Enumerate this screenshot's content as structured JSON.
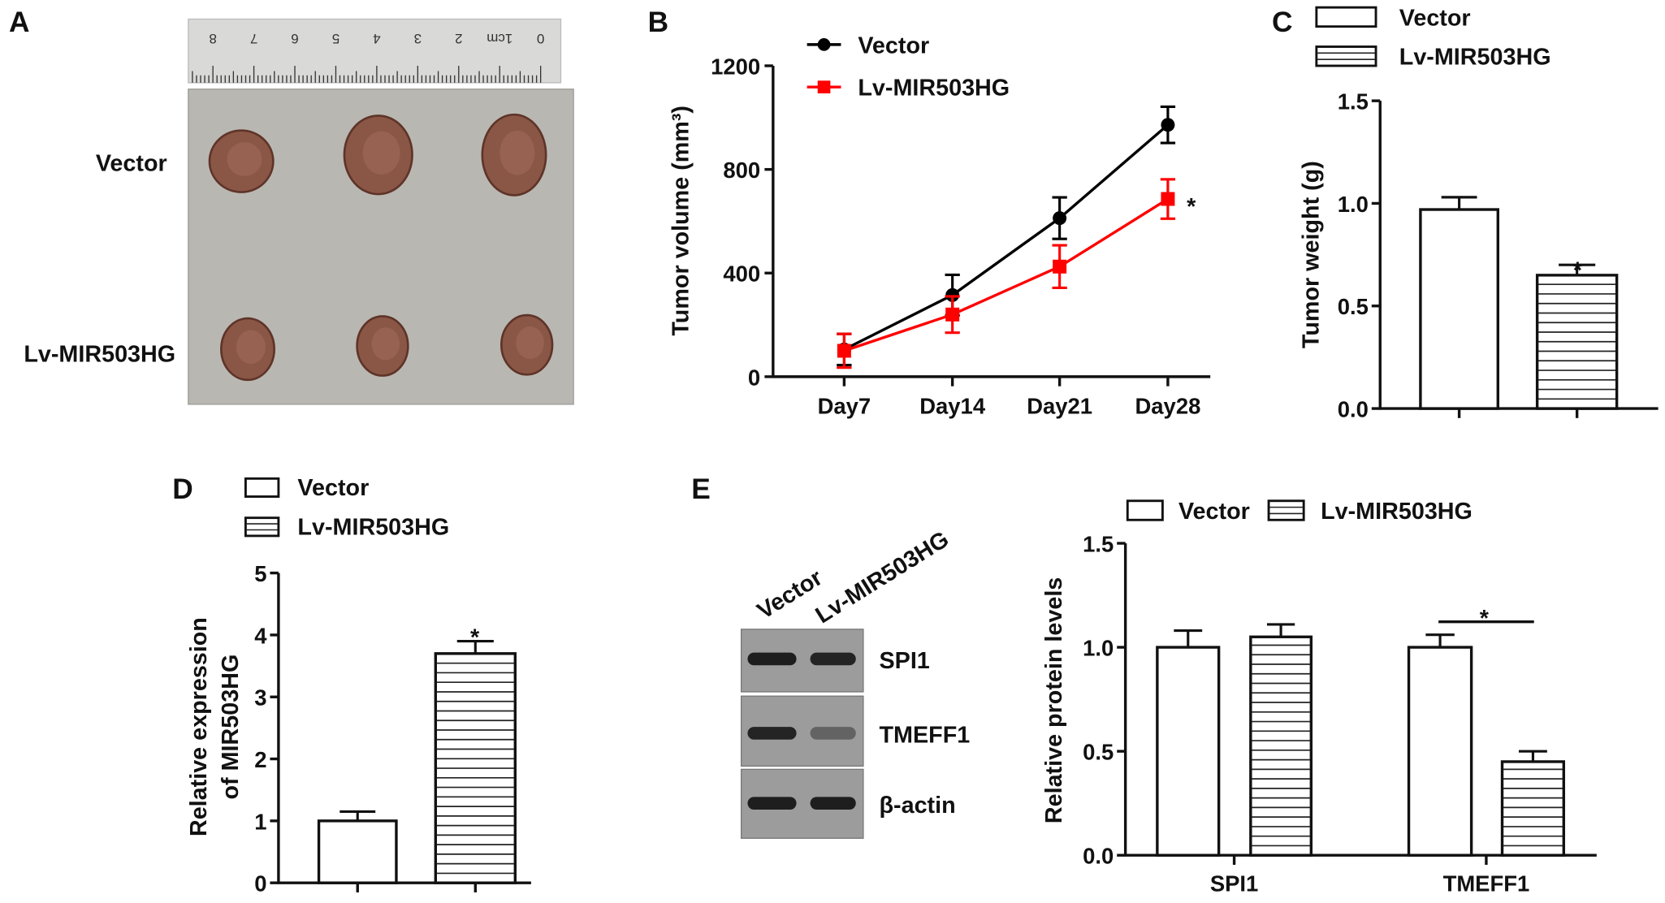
{
  "figure": {
    "panel_labels": {
      "a": "A",
      "b": "B",
      "c": "C",
      "d": "D",
      "e": "E"
    },
    "panel_a": {
      "row_labels": [
        "Vector",
        "Lv-MIR503HG"
      ],
      "ruler_labels": [
        "0",
        "1cm",
        "2",
        "3",
        "4",
        "5",
        "6",
        "7",
        "8"
      ],
      "colors": {
        "tumor": "#8a5646",
        "tumor_edge": "#5e3429",
        "background": "#b9b7b1",
        "ruler": "#d9d9d7"
      }
    },
    "panel_e_blot": {
      "lane_labels": [
        "Vector",
        "Lv-MIR503HG"
      ],
      "band_labels": [
        "SPI1",
        "TMEFF1",
        "β-actin"
      ],
      "colors": {
        "membrane": "#9c9c9c",
        "band": "#1e1e1e"
      }
    }
  },
  "chart_data": [
    {
      "panel": "B",
      "type": "line",
      "categories": [
        "Day7",
        "Day14",
        "Day21",
        "Day28"
      ],
      "ylabel": "Tumor volume (mm³)",
      "xlabel": "",
      "ylim": [
        0,
        1200
      ],
      "yticks": [
        "0",
        "400",
        "800",
        "1200"
      ],
      "grid": false,
      "legend": "top-left",
      "series": [
        {
          "name": "Vector",
          "color": "#000000",
          "marker": "circle",
          "values": [
            105,
            315,
            612,
            972
          ],
          "errors": [
            60,
            78,
            80,
            70
          ]
        },
        {
          "name": "Lv-MIR503HG",
          "color": "#ff0000",
          "marker": "square",
          "values": [
            100,
            240,
            425,
            686
          ],
          "errors": [
            65,
            70,
            82,
            76
          ]
        }
      ],
      "annotations": [
        "*"
      ]
    },
    {
      "panel": "C",
      "type": "bar",
      "categories": [
        "Vector",
        "Lv-MIR503HG"
      ],
      "values": [
        0.97,
        0.65
      ],
      "errors": [
        0.06,
        0.05
      ],
      "fills": [
        "open",
        "horizontal-hatch"
      ],
      "ylabel": "Tumor weight (g)",
      "xlabel": "",
      "ylim": [
        0,
        1.5
      ],
      "yticks": [
        "0.0",
        "0.5",
        "1.0",
        "1.5"
      ],
      "legend": "top",
      "annotations": [
        "*"
      ]
    },
    {
      "panel": "D",
      "type": "bar",
      "categories": [
        "Vector",
        "Lv-MIR503HG"
      ],
      "values": [
        1.0,
        3.7
      ],
      "errors": [
        0.15,
        0.2
      ],
      "fills": [
        "open",
        "horizontal-hatch"
      ],
      "ylabel": [
        "Relative expression",
        "of MIR503HG"
      ],
      "xlabel": "",
      "ylim": [
        0,
        5
      ],
      "yticks": [
        "0",
        "1",
        "2",
        "3",
        "4",
        "5"
      ],
      "legend": "top",
      "annotations": [
        "*"
      ]
    },
    {
      "panel": "E",
      "type": "bar",
      "categories": [
        "SPI1",
        "TMEFF1"
      ],
      "series": [
        {
          "name": "Vector",
          "fill": "open",
          "values": [
            1.0,
            1.0
          ],
          "errors": [
            0.08,
            0.06
          ]
        },
        {
          "name": "Lv-MIR503HG",
          "fill": "horizontal-hatch",
          "values": [
            1.05,
            0.45
          ],
          "errors": [
            0.06,
            0.05
          ]
        }
      ],
      "ylabel": "Relative protein levels",
      "xlabel": "",
      "ylim": [
        0,
        1.5
      ],
      "yticks": [
        "0.0",
        "0.5",
        "1.0",
        "1.5"
      ],
      "legend": "top",
      "annotations": [
        "*"
      ]
    }
  ]
}
